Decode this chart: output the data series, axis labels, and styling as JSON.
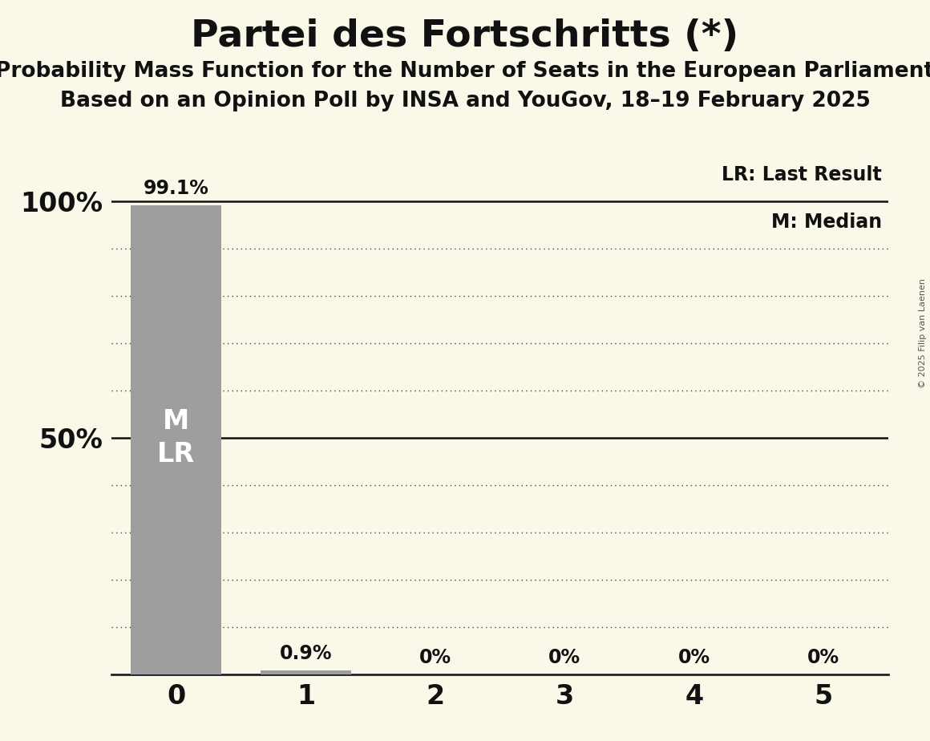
{
  "title": "Partei des Fortschritts (*)",
  "subtitle1": "Probability Mass Function for the Number of Seats in the European Parliament",
  "subtitle2": "Based on an Opinion Poll by INSA and YouGov, 18–19 February 2025",
  "copyright": "© 2025 Filip van Laenen",
  "categories": [
    0,
    1,
    2,
    3,
    4,
    5
  ],
  "values": [
    99.1,
    0.9,
    0.0,
    0.0,
    0.0,
    0.0
  ],
  "bar_color": "#9e9e9e",
  "background_color": "#faf8e8",
  "title_fontsize": 34,
  "subtitle_fontsize": 19,
  "ytick_labels": [
    "100%",
    "50%"
  ],
  "ytick_values": [
    100,
    50
  ],
  "grid_lines": [
    10,
    20,
    30,
    40,
    50,
    60,
    70,
    80,
    90,
    100
  ],
  "ylim": [
    0,
    108
  ],
  "bar_width": 0.7,
  "annotation_fontsize": 17,
  "axis_tick_fontsize": 24,
  "dotted_line_color": "#444444",
  "solid_line_50_color": "#111111",
  "text_on_bar_color": "#ffffff",
  "text_on_bar_fontsize": 24,
  "legend_lr": "LR: Last Result",
  "legend_m": "M: Median",
  "legend_fontsize": 17,
  "copyright_fontsize": 8
}
